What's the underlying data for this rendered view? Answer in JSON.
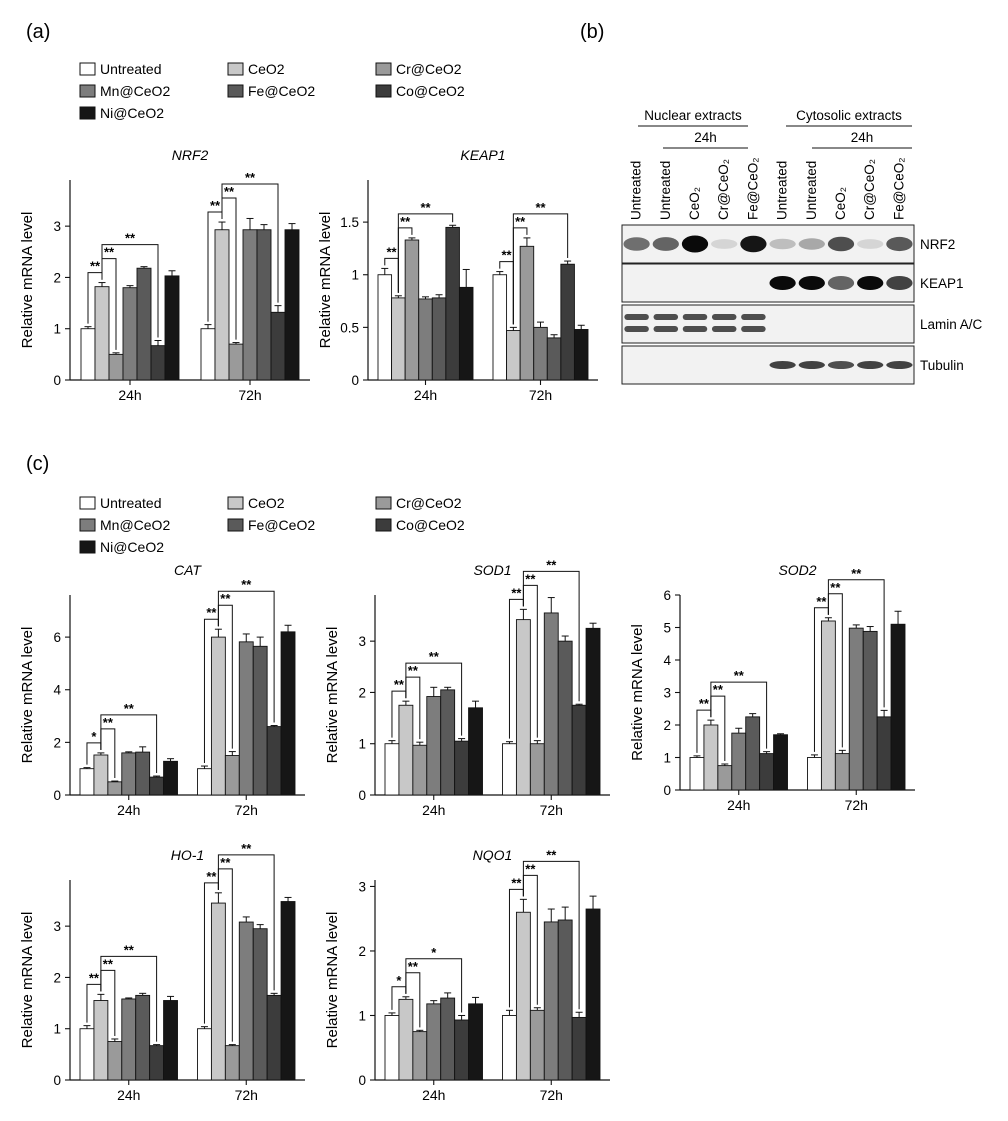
{
  "panels": {
    "a": "(a)",
    "b": "(b)",
    "c": "(c)"
  },
  "legend": {
    "items": [
      "Untreated",
      "CeO2",
      "Cr@CeO2",
      "Mn@CeO2",
      "Fe@CeO2",
      "Co@CeO2",
      "Ni@CeO2"
    ],
    "colors": [
      "#ffffff",
      "#c8c8c8",
      "#9a9a9a",
      "#7d7d7d",
      "#5a5a5a",
      "#3c3c3c",
      "#161616"
    ]
  },
  "chart_data": [
    {
      "id": "NRF2",
      "type": "bar",
      "title": "NRF2",
      "ylabel": "Relative mRNA level",
      "ylim": [
        0,
        3.9
      ],
      "yticks": [
        0,
        1,
        2,
        3
      ],
      "categories": [
        "24h",
        "72h"
      ],
      "series": [
        {
          "name": "Untreated",
          "values": [
            1.0,
            1.0
          ],
          "errors": [
            0.04,
            0.08
          ]
        },
        {
          "name": "CeO2",
          "values": [
            1.82,
            2.93
          ],
          "errors": [
            0.08,
            0.15
          ]
        },
        {
          "name": "Cr@CeO2",
          "values": [
            0.5,
            0.7
          ],
          "errors": [
            0.03,
            0.03
          ]
        },
        {
          "name": "Mn@CeO2",
          "values": [
            1.8,
            2.93
          ],
          "errors": [
            0.04,
            0.22
          ]
        },
        {
          "name": "Fe@CeO2",
          "values": [
            2.18,
            2.93
          ],
          "errors": [
            0.03,
            0.1
          ]
        },
        {
          "name": "Co@CeO2",
          "values": [
            0.67,
            1.32
          ],
          "errors": [
            0.1,
            0.13
          ]
        },
        {
          "name": "Ni@CeO2",
          "values": [
            2.03,
            2.93
          ],
          "errors": [
            0.1,
            0.12
          ]
        }
      ],
      "significance": [
        {
          "group": 0,
          "from": 0,
          "to": 1,
          "label": "**"
        },
        {
          "group": 0,
          "from": 1,
          "to": 2,
          "label": "**"
        },
        {
          "group": 0,
          "from": 1,
          "to": 5,
          "label": "**"
        },
        {
          "group": 1,
          "from": 0,
          "to": 1,
          "label": "**"
        },
        {
          "group": 1,
          "from": 1,
          "to": 2,
          "label": "**"
        },
        {
          "group": 1,
          "from": 1,
          "to": 5,
          "label": "**"
        }
      ]
    },
    {
      "id": "KEAP1",
      "type": "bar",
      "title": "KEAP1",
      "ylabel": "Relative mRNA level",
      "ylim": [
        0,
        1.9
      ],
      "yticks": [
        0,
        0.5,
        1,
        1.5
      ],
      "categories": [
        "24h",
        "72h"
      ],
      "series": [
        {
          "name": "Untreated",
          "values": [
            1.0,
            1.0
          ],
          "errors": [
            0.06,
            0.03
          ]
        },
        {
          "name": "CeO2",
          "values": [
            0.78,
            0.47
          ],
          "errors": [
            0.02,
            0.03
          ]
        },
        {
          "name": "Cr@CeO2",
          "values": [
            1.33,
            1.27
          ],
          "errors": [
            0.02,
            0.08
          ]
        },
        {
          "name": "Mn@CeO2",
          "values": [
            0.77,
            0.5
          ],
          "errors": [
            0.02,
            0.05
          ]
        },
        {
          "name": "Fe@CeO2",
          "values": [
            0.78,
            0.4
          ],
          "errors": [
            0.03,
            0.03
          ]
        },
        {
          "name": "Co@CeO2",
          "values": [
            1.45,
            1.1
          ],
          "errors": [
            0.02,
            0.03
          ]
        },
        {
          "name": "Ni@CeO2",
          "values": [
            0.88,
            0.48
          ],
          "errors": [
            0.17,
            0.04
          ]
        }
      ],
      "significance": [
        {
          "group": 0,
          "from": 0,
          "to": 1,
          "label": "**"
        },
        {
          "group": 0,
          "from": 1,
          "to": 2,
          "label": "**"
        },
        {
          "group": 0,
          "from": 1,
          "to": 5,
          "label": "**"
        },
        {
          "group": 1,
          "from": 0,
          "to": 1,
          "label": "**"
        },
        {
          "group": 1,
          "from": 1,
          "to": 2,
          "label": "**"
        },
        {
          "group": 1,
          "from": 1,
          "to": 5,
          "label": "**"
        }
      ]
    },
    {
      "id": "CAT",
      "type": "bar",
      "title": "CAT",
      "ylabel": "Relative mRNA level",
      "ylim": [
        0,
        7.6
      ],
      "yticks": [
        0,
        2,
        4,
        6
      ],
      "categories": [
        "24h",
        "72h"
      ],
      "series": [
        {
          "name": "Untreated",
          "values": [
            1.0,
            1.0
          ],
          "errors": [
            0.04,
            0.1
          ]
        },
        {
          "name": "CeO2",
          "values": [
            1.52,
            6.0
          ],
          "errors": [
            0.08,
            0.3
          ]
        },
        {
          "name": "Cr@CeO2",
          "values": [
            0.5,
            1.5
          ],
          "errors": [
            0.03,
            0.15
          ]
        },
        {
          "name": "Mn@CeO2",
          "values": [
            1.6,
            5.82
          ],
          "errors": [
            0.04,
            0.3
          ]
        },
        {
          "name": "Fe@CeO2",
          "values": [
            1.63,
            5.65
          ],
          "errors": [
            0.2,
            0.35
          ]
        },
        {
          "name": "Co@CeO2",
          "values": [
            0.68,
            2.6
          ],
          "errors": [
            0.04,
            0.04
          ]
        },
        {
          "name": "Ni@CeO2",
          "values": [
            1.28,
            6.2
          ],
          "errors": [
            0.1,
            0.25
          ]
        }
      ],
      "significance": [
        {
          "group": 0,
          "from": 0,
          "to": 1,
          "label": "*"
        },
        {
          "group": 0,
          "from": 1,
          "to": 2,
          "label": "**"
        },
        {
          "group": 0,
          "from": 1,
          "to": 5,
          "label": "**"
        },
        {
          "group": 1,
          "from": 0,
          "to": 1,
          "label": "**"
        },
        {
          "group": 1,
          "from": 1,
          "to": 2,
          "label": "**"
        },
        {
          "group": 1,
          "from": 1,
          "to": 5,
          "label": "**"
        }
      ]
    },
    {
      "id": "SOD1",
      "type": "bar",
      "title": "SOD1",
      "ylabel": "Relative mRNA level",
      "ylim": [
        0,
        3.9
      ],
      "yticks": [
        0,
        1,
        2,
        3
      ],
      "categories": [
        "24h",
        "72h"
      ],
      "series": [
        {
          "name": "Untreated",
          "values": [
            1.0,
            1.0
          ],
          "errors": [
            0.06,
            0.04
          ]
        },
        {
          "name": "CeO2",
          "values": [
            1.75,
            3.42
          ],
          "errors": [
            0.08,
            0.2
          ]
        },
        {
          "name": "Cr@CeO2",
          "values": [
            0.97,
            1.0
          ],
          "errors": [
            0.06,
            0.06
          ]
        },
        {
          "name": "Mn@CeO2",
          "values": [
            1.92,
            3.55
          ],
          "errors": [
            0.18,
            0.3
          ]
        },
        {
          "name": "Fe@CeO2",
          "values": [
            2.05,
            3.0
          ],
          "errors": [
            0.05,
            0.1
          ]
        },
        {
          "name": "Co@CeO2",
          "values": [
            1.05,
            1.75
          ],
          "errors": [
            0.05,
            0.02
          ]
        },
        {
          "name": "Ni@CeO2",
          "values": [
            1.7,
            3.25
          ],
          "errors": [
            0.13,
            0.1
          ]
        }
      ],
      "significance": [
        {
          "group": 0,
          "from": 0,
          "to": 1,
          "label": "**"
        },
        {
          "group": 0,
          "from": 1,
          "to": 2,
          "label": "**"
        },
        {
          "group": 0,
          "from": 1,
          "to": 5,
          "label": "**"
        },
        {
          "group": 1,
          "from": 0,
          "to": 1,
          "label": "**"
        },
        {
          "group": 1,
          "from": 1,
          "to": 2,
          "label": "**"
        },
        {
          "group": 1,
          "from": 1,
          "to": 5,
          "label": "**"
        }
      ]
    },
    {
      "id": "SOD2",
      "type": "bar",
      "title": "SOD2",
      "ylabel": "Relative mRNA level",
      "ylim": [
        0,
        6
      ],
      "yticks": [
        0,
        1,
        2,
        3,
        4,
        5,
        6
      ],
      "categories": [
        "24h",
        "72h"
      ],
      "series": [
        {
          "name": "Untreated",
          "values": [
            1.0,
            1.0
          ],
          "errors": [
            0.05,
            0.08
          ]
        },
        {
          "name": "CeO2",
          "values": [
            2.0,
            5.2
          ],
          "errors": [
            0.15,
            0.1
          ]
        },
        {
          "name": "Cr@CeO2",
          "values": [
            0.75,
            1.12
          ],
          "errors": [
            0.05,
            0.1
          ]
        },
        {
          "name": "Mn@CeO2",
          "values": [
            1.75,
            4.98
          ],
          "errors": [
            0.15,
            0.1
          ]
        },
        {
          "name": "Fe@CeO2",
          "values": [
            2.25,
            4.88
          ],
          "errors": [
            0.1,
            0.15
          ]
        },
        {
          "name": "Co@CeO2",
          "values": [
            1.12,
            2.25
          ],
          "errors": [
            0.06,
            0.2
          ]
        },
        {
          "name": "Ni@CeO2",
          "values": [
            1.7,
            5.1
          ],
          "errors": [
            0.03,
            0.4
          ]
        }
      ],
      "significance": [
        {
          "group": 0,
          "from": 0,
          "to": 1,
          "label": "**"
        },
        {
          "group": 0,
          "from": 1,
          "to": 2,
          "label": "**"
        },
        {
          "group": 0,
          "from": 1,
          "to": 5,
          "label": "**"
        },
        {
          "group": 1,
          "from": 0,
          "to": 1,
          "label": "**"
        },
        {
          "group": 1,
          "from": 1,
          "to": 2,
          "label": "**"
        },
        {
          "group": 1,
          "from": 1,
          "to": 5,
          "label": "**"
        }
      ]
    },
    {
      "id": "HO-1",
      "type": "bar",
      "title": "HO-1",
      "ylabel": "Relative mRNA level",
      "ylim": [
        0,
        3.9
      ],
      "yticks": [
        0,
        1,
        2,
        3
      ],
      "categories": [
        "24h",
        "72h"
      ],
      "series": [
        {
          "name": "Untreated",
          "values": [
            1.0,
            1.0
          ],
          "errors": [
            0.06,
            0.04
          ]
        },
        {
          "name": "CeO2",
          "values": [
            1.55,
            3.45
          ],
          "errors": [
            0.12,
            0.2
          ]
        },
        {
          "name": "Cr@CeO2",
          "values": [
            0.75,
            0.67
          ],
          "errors": [
            0.05,
            0.02
          ]
        },
        {
          "name": "Mn@CeO2",
          "values": [
            1.58,
            3.08
          ],
          "errors": [
            0.02,
            0.1
          ]
        },
        {
          "name": "Fe@CeO2",
          "values": [
            1.65,
            2.95
          ],
          "errors": [
            0.04,
            0.08
          ]
        },
        {
          "name": "Co@CeO2",
          "values": [
            0.67,
            1.65
          ],
          "errors": [
            0.02,
            0.04
          ]
        },
        {
          "name": "Ni@CeO2",
          "values": [
            1.55,
            3.48
          ],
          "errors": [
            0.08,
            0.08
          ]
        }
      ],
      "significance": [
        {
          "group": 0,
          "from": 0,
          "to": 1,
          "label": "**"
        },
        {
          "group": 0,
          "from": 1,
          "to": 2,
          "label": "**"
        },
        {
          "group": 0,
          "from": 1,
          "to": 5,
          "label": "**"
        },
        {
          "group": 1,
          "from": 0,
          "to": 1,
          "label": "**"
        },
        {
          "group": 1,
          "from": 1,
          "to": 2,
          "label": "**"
        },
        {
          "group": 1,
          "from": 1,
          "to": 5,
          "label": "**"
        }
      ]
    },
    {
      "id": "NQO1",
      "type": "bar",
      "title": "NQO1",
      "ylabel": "Relative mRNA level",
      "ylim": [
        0,
        3.1
      ],
      "yticks": [
        0,
        1,
        2,
        3
      ],
      "categories": [
        "24h",
        "72h"
      ],
      "series": [
        {
          "name": "Untreated",
          "values": [
            1.0,
            1.0
          ],
          "errors": [
            0.04,
            0.08
          ]
        },
        {
          "name": "CeO2",
          "values": [
            1.25,
            2.6
          ],
          "errors": [
            0.04,
            0.2
          ]
        },
        {
          "name": "Cr@CeO2",
          "values": [
            0.75,
            1.08
          ],
          "errors": [
            0.02,
            0.04
          ]
        },
        {
          "name": "Mn@CeO2",
          "values": [
            1.18,
            2.45
          ],
          "errors": [
            0.05,
            0.2
          ]
        },
        {
          "name": "Fe@CeO2",
          "values": [
            1.27,
            2.48
          ],
          "errors": [
            0.08,
            0.2
          ]
        },
        {
          "name": "Co@CeO2",
          "values": [
            0.93,
            0.97
          ],
          "errors": [
            0.07,
            0.08
          ]
        },
        {
          "name": "Ni@CeO2",
          "values": [
            1.18,
            2.65
          ],
          "errors": [
            0.1,
            0.2
          ]
        }
      ],
      "significance": [
        {
          "group": 0,
          "from": 0,
          "to": 1,
          "label": "*"
        },
        {
          "group": 0,
          "from": 1,
          "to": 2,
          "label": "**"
        },
        {
          "group": 0,
          "from": 1,
          "to": 5,
          "label": "*"
        },
        {
          "group": 1,
          "from": 0,
          "to": 1,
          "label": "**"
        },
        {
          "group": 1,
          "from": 1,
          "to": 2,
          "label": "**"
        },
        {
          "group": 1,
          "from": 1,
          "to": 5,
          "label": "**"
        }
      ]
    }
  ],
  "western_blot": {
    "group_labels": [
      "Nuclear extracts",
      "Cytosolic extracts"
    ],
    "time_labels": [
      "24h",
      "24h"
    ],
    "lane_labels": [
      "Untreated",
      "Untreated",
      "CeO₂",
      "Cr@CeO₂",
      "Fe@CeO₂",
      "Untreated",
      "Untreated",
      "CeO₂",
      "Cr@CeO₂",
      "Fe@CeO₂"
    ],
    "rows": [
      {
        "label": "NRF2",
        "intensities": [
          0.55,
          0.6,
          1.0,
          0.1,
          0.95,
          0.2,
          0.3,
          0.7,
          0.1,
          0.65
        ]
      },
      {
        "label": "KEAP1",
        "intensities": [
          0,
          0,
          0,
          0,
          0,
          1.0,
          1.0,
          0.6,
          1.0,
          0.75
        ]
      },
      {
        "label": "Lamin A/C",
        "intensities": [
          0.7,
          0.7,
          0.7,
          0.7,
          0.7,
          0,
          0,
          0,
          0,
          0
        ]
      },
      {
        "label": "Tubulin",
        "intensities": [
          0,
          0,
          0,
          0,
          0,
          0.75,
          0.75,
          0.7,
          0.75,
          0.75
        ]
      }
    ]
  }
}
